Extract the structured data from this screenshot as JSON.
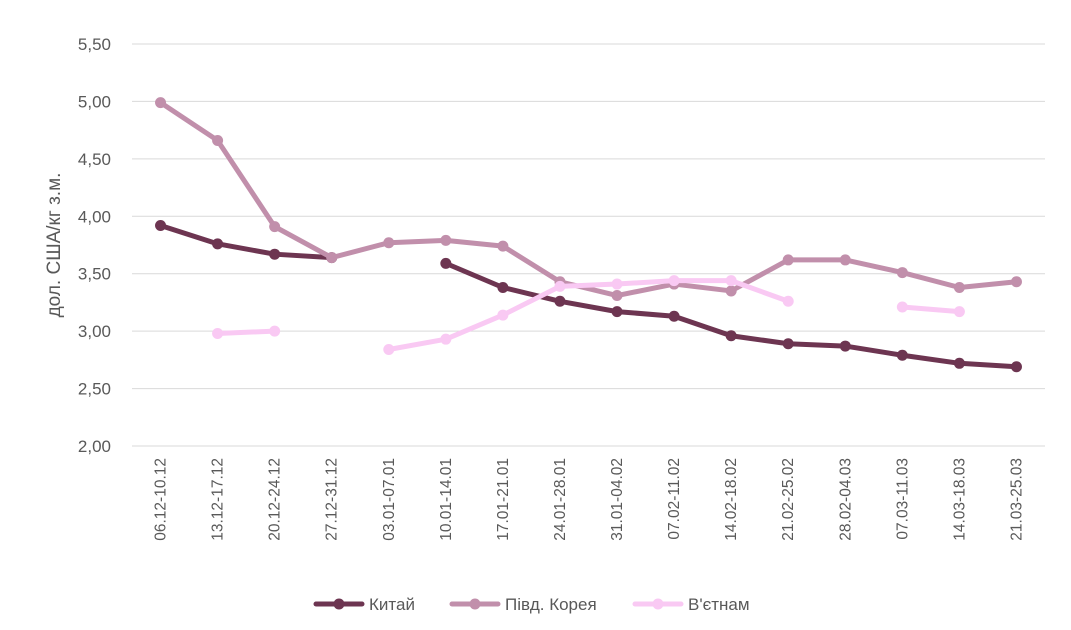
{
  "chart_data": {
    "type": "line",
    "ylabel": "дол. США/кг з.м.",
    "xlabel": "",
    "ylim": [
      2.0,
      5.5
    ],
    "ytick_step": 0.5,
    "y_tick_labels": [
      "2,00",
      "2,50",
      "3,00",
      "3,50",
      "4,00",
      "4,50",
      "5,00",
      "5,50"
    ],
    "grid": true,
    "legend_position": "bottom",
    "categories": [
      "06.12-10.12",
      "13.12-17.12",
      "20.12-24.12",
      "27.12-31.12",
      "03.01-07.01",
      "10.01-14.01",
      "17.01-21.01",
      "24.01-28.01",
      "31.01-04.02",
      "07.02-11.02",
      "14.02-18.02",
      "21.02-25.02",
      "28.02-04.03",
      "07.03-11.03",
      "14.03-18.03",
      "21.03-25.03"
    ],
    "series": [
      {
        "name": "Китай",
        "color": "#6d3551",
        "values": [
          3.92,
          3.76,
          3.67,
          3.64,
          null,
          3.59,
          3.38,
          3.26,
          3.17,
          3.13,
          2.96,
          2.89,
          2.87,
          2.79,
          2.72,
          2.69
        ]
      },
      {
        "name": "Півд. Корея",
        "color": "#c18fab",
        "values": [
          4.99,
          4.66,
          3.91,
          3.64,
          3.77,
          3.79,
          3.74,
          3.43,
          3.31,
          3.41,
          3.35,
          3.62,
          3.62,
          3.51,
          3.38,
          3.43
        ]
      },
      {
        "name": "В'єтнам",
        "color": "#f9c9f3",
        "values": [
          null,
          2.98,
          3.0,
          null,
          2.84,
          2.93,
          3.14,
          3.39,
          3.41,
          3.44,
          3.44,
          3.26,
          null,
          3.21,
          3.17,
          null
        ]
      }
    ]
  }
}
